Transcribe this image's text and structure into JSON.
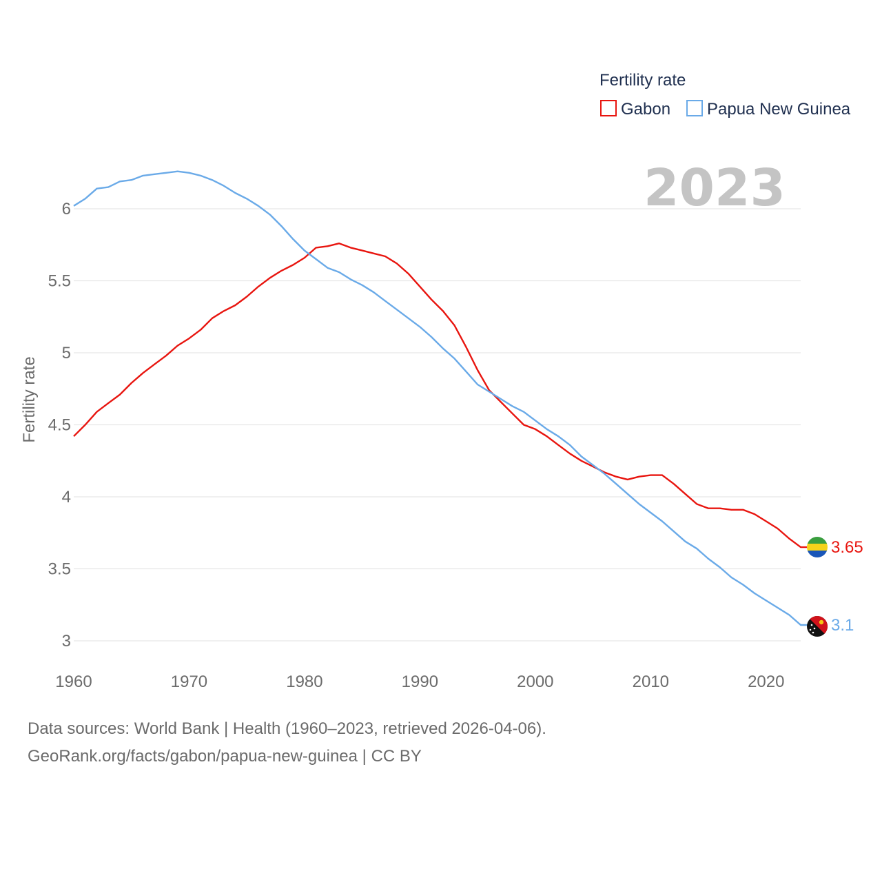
{
  "chart_data": {
    "type": "line",
    "title": "Fertility rate",
    "ylabel": "Fertility rate",
    "xlabel": "",
    "highlight_year": "2023",
    "xlim": [
      1960,
      2023
    ],
    "ylim": [
      3,
      6.25
    ],
    "x_ticks": [
      1960,
      1970,
      1980,
      1990,
      2000,
      2010,
      2020
    ],
    "y_ticks": [
      3,
      3.5,
      4,
      4.5,
      5,
      5.5,
      6
    ],
    "y_tick_labels": [
      "3",
      "3.5",
      "4",
      "4.5",
      "5",
      "5.5",
      "6"
    ],
    "legend_title": "Fertility rate",
    "x": [
      1960,
      1961,
      1962,
      1963,
      1964,
      1965,
      1966,
      1967,
      1968,
      1969,
      1970,
      1971,
      1972,
      1973,
      1974,
      1975,
      1976,
      1977,
      1978,
      1979,
      1980,
      1981,
      1982,
      1983,
      1984,
      1985,
      1986,
      1987,
      1988,
      1989,
      1990,
      1991,
      1992,
      1993,
      1994,
      1995,
      1996,
      1997,
      1998,
      1999,
      2000,
      2001,
      2002,
      2003,
      2004,
      2005,
      2006,
      2007,
      2008,
      2009,
      2010,
      2011,
      2012,
      2013,
      2014,
      2015,
      2016,
      2017,
      2018,
      2019,
      2020,
      2021,
      2022,
      2023
    ],
    "series": [
      {
        "name": "Gabon",
        "color": "#e8150f",
        "end_label": "3.65",
        "flag": "gabon-flag",
        "values": [
          4.42,
          4.5,
          4.59,
          4.65,
          4.71,
          4.79,
          4.86,
          4.92,
          4.98,
          5.05,
          5.1,
          5.16,
          5.24,
          5.29,
          5.33,
          5.39,
          5.46,
          5.52,
          5.57,
          5.61,
          5.66,
          5.73,
          5.74,
          5.76,
          5.73,
          5.71,
          5.69,
          5.67,
          5.62,
          5.55,
          5.46,
          5.37,
          5.29,
          5.19,
          5.04,
          4.88,
          4.74,
          4.66,
          4.58,
          4.5,
          4.47,
          4.42,
          4.36,
          4.3,
          4.25,
          4.21,
          4.17,
          4.14,
          4.12,
          4.14,
          4.15,
          4.15,
          4.09,
          4.02,
          3.95,
          3.92,
          3.92,
          3.91,
          3.91,
          3.88,
          3.83,
          3.78,
          3.71,
          3.65
        ]
      },
      {
        "name": "Papua New Guinea",
        "color": "#6aaae8",
        "end_label": "3.1",
        "flag": "papua-new-guinea-flag",
        "values": [
          6.02,
          6.07,
          6.14,
          6.15,
          6.19,
          6.2,
          6.23,
          6.24,
          6.25,
          6.26,
          6.25,
          6.23,
          6.2,
          6.16,
          6.11,
          6.07,
          6.02,
          5.96,
          5.88,
          5.79,
          5.71,
          5.65,
          5.59,
          5.56,
          5.51,
          5.47,
          5.42,
          5.36,
          5.3,
          5.24,
          5.18,
          5.11,
          5.03,
          4.96,
          4.87,
          4.78,
          4.73,
          4.68,
          4.63,
          4.59,
          4.53,
          4.47,
          4.42,
          4.36,
          4.28,
          4.22,
          4.16,
          4.09,
          4.02,
          3.95,
          3.89,
          3.83,
          3.76,
          3.69,
          3.64,
          3.57,
          3.51,
          3.44,
          3.39,
          3.33,
          3.28,
          3.23,
          3.18,
          3.11
        ]
      }
    ]
  },
  "footer": {
    "line1": "Data sources: World Bank | Health (1960–2023, retrieved 2026-04-06).",
    "line2": "GeoRank.org/facts/gabon/papua-new-guinea | CC BY"
  }
}
